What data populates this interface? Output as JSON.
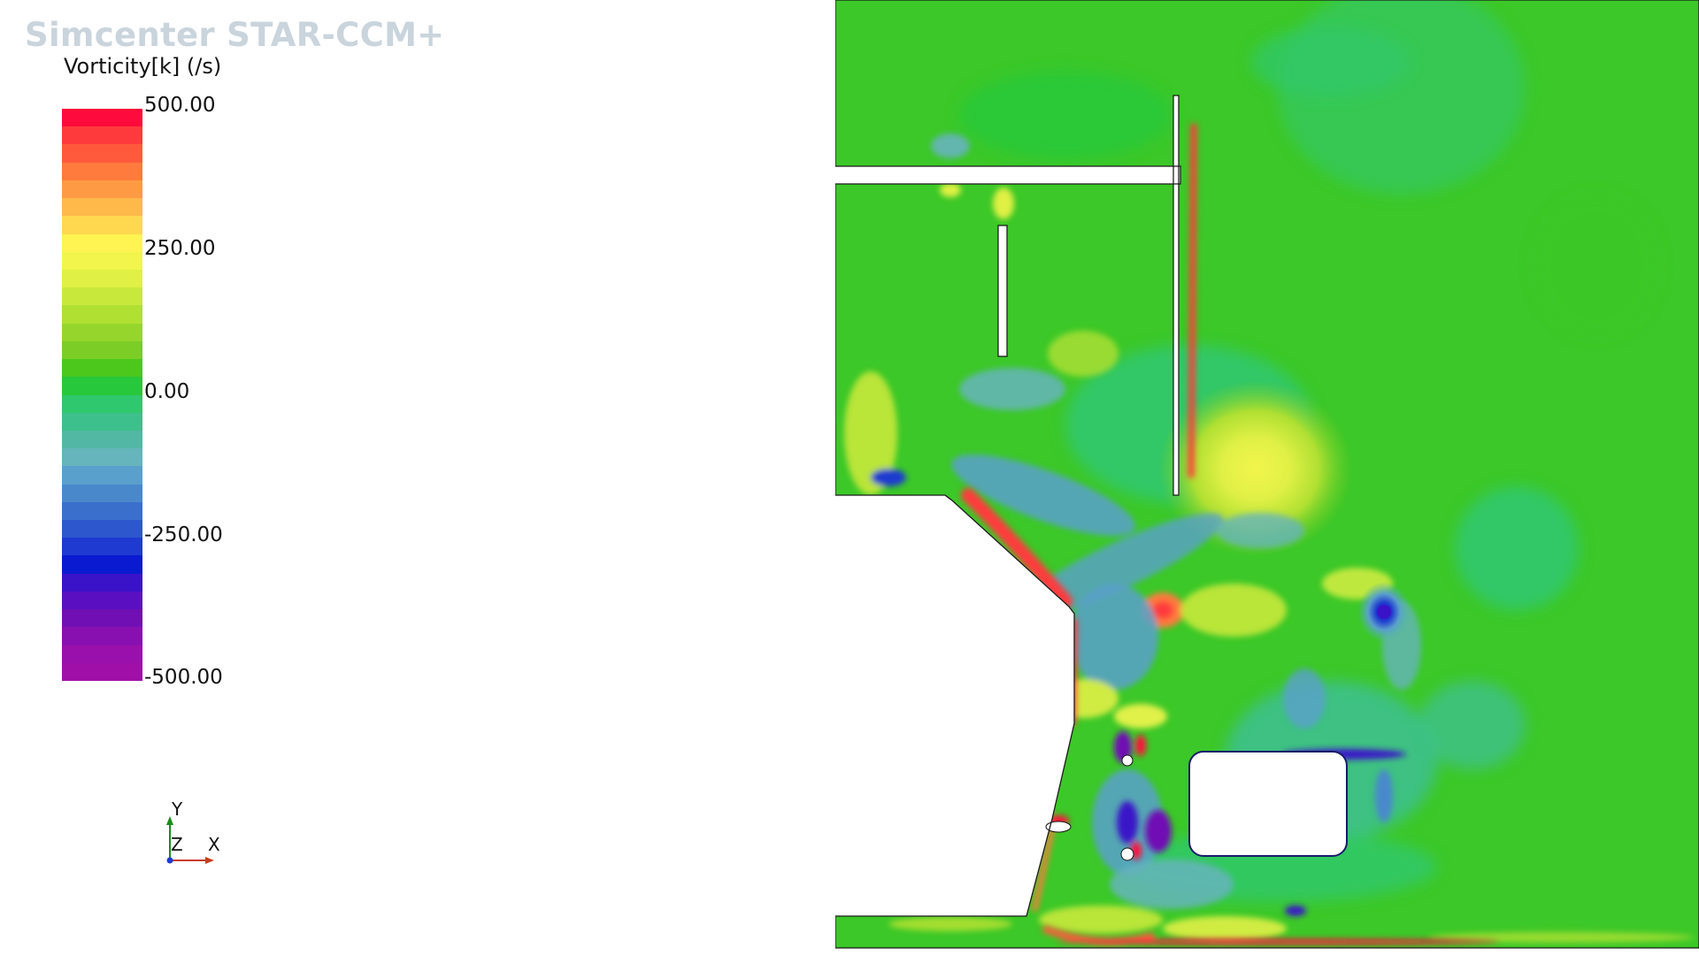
{
  "app": {
    "brand": "Simcenter STAR-CCM+"
  },
  "legend": {
    "title": "Vorticity[k] (/s)",
    "ticks": [
      "500.00",
      "250.00",
      "0.00",
      "-250.00",
      "-500.00"
    ],
    "range": [
      -500,
      500
    ],
    "colors": [
      "#ff0a3c",
      "#ff3a3c",
      "#ff5a3c",
      "#ff7a3c",
      "#ff9a44",
      "#ffb84a",
      "#ffd850",
      "#fff452",
      "#f2f54c",
      "#e0f045",
      "#c8e83c",
      "#b0e032",
      "#96d62c",
      "#7ccd26",
      "#4cc81c",
      "#28c83c",
      "#30c86e",
      "#3ec08c",
      "#52b8a4",
      "#66b4bc",
      "#5aa0cc",
      "#4a88cc",
      "#3a6fcc",
      "#2d57cc",
      "#1e3ad0",
      "#0a1ad0",
      "#3a12c8",
      "#5a10c0",
      "#7010b4",
      "#8810b0",
      "#9a10ac",
      "#a010a8"
    ]
  },
  "triad": {
    "y_label": "Y",
    "z_label": "Z",
    "x_label": "X"
  },
  "scene": {
    "field_name": "Vorticity[k]",
    "unit": "/s",
    "background_color": "#3cc828",
    "solid_color": "#ffffff"
  }
}
